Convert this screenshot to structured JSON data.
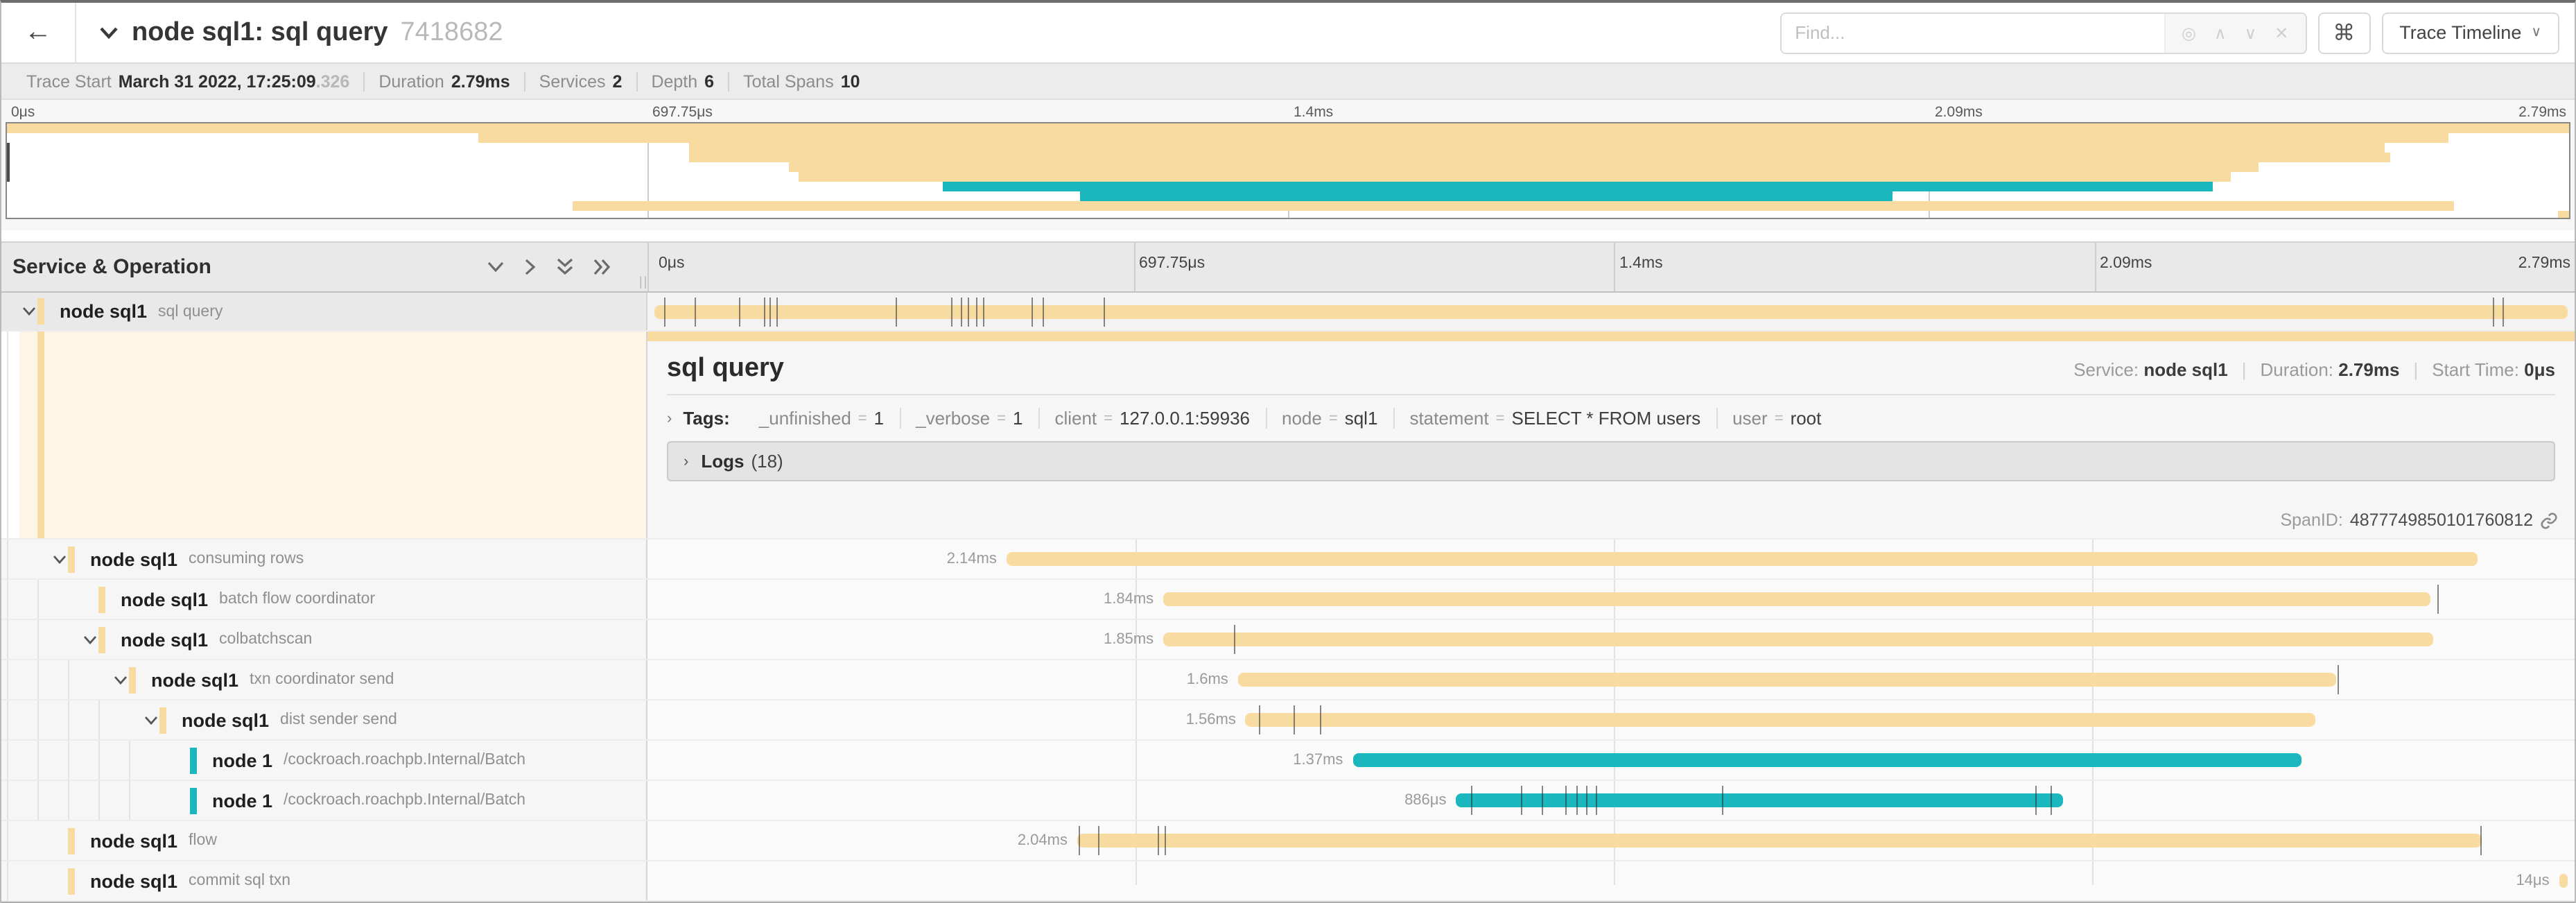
{
  "colors": {
    "tan": "#F8DBA0",
    "teal": "#1AB8BE"
  },
  "header": {
    "back": "←",
    "title": "node sql1: sql query",
    "trace_id": "7418682",
    "find_placeholder": "Find...",
    "find_icons": {
      "target": "◎",
      "prev": "∧",
      "next": "∨",
      "clear": "✕"
    },
    "shortcut_button": "⌘",
    "view_button": "Trace Timeline",
    "view_caret": "∨"
  },
  "trace_info": [
    {
      "label": "Trace Start",
      "value": "March 31 2022, 17:25:09",
      "suffix": ".326"
    },
    {
      "label": "Duration",
      "value": "2.79ms",
      "suffix": ""
    },
    {
      "label": "Services",
      "value": "2",
      "suffix": ""
    },
    {
      "label": "Depth",
      "value": "6",
      "suffix": ""
    },
    {
      "label": "Total Spans",
      "value": "10",
      "suffix": ""
    }
  ],
  "ruler": {
    "ticks": [
      {
        "label": "0μs",
        "pos": 0
      },
      {
        "label": "697.75μs",
        "pos": 0.25
      },
      {
        "label": "1.4ms",
        "pos": 0.5
      },
      {
        "label": "2.09ms",
        "pos": 0.75
      },
      {
        "label": "2.79ms",
        "pos": 1
      }
    ],
    "gridlines": [
      0.25,
      0.5,
      0.75
    ]
  },
  "section": {
    "left_title": "Service & Operation"
  },
  "spans": [
    {
      "service": "node sql1",
      "operation": "sql query",
      "level": 0,
      "chevron": true,
      "selected": true,
      "color": "tan",
      "start": 0,
      "end": 1,
      "duration_label": "",
      "ticks": [
        0.005,
        0.021,
        0.044,
        0.057,
        0.06,
        0.064,
        0.126,
        0.155,
        0.16,
        0.164,
        0.168,
        0.172,
        0.197,
        0.203,
        0.235,
        0.961,
        0.966
      ]
    },
    {
      "service": "node sql1",
      "operation": "consuming rows",
      "level": 1,
      "chevron": true,
      "selected": false,
      "color": "tan",
      "start": 0.184,
      "end": 0.953,
      "duration_label": "2.14ms",
      "ticks": []
    },
    {
      "service": "node sql1",
      "operation": "batch flow coordinator",
      "level": 2,
      "chevron": false,
      "selected": false,
      "color": "tan",
      "start": 0.266,
      "end": 0.928,
      "duration_label": "1.84ms",
      "ticks": [
        0.932
      ]
    },
    {
      "service": "node sql1",
      "operation": "colbatchscan",
      "level": 2,
      "chevron": true,
      "selected": false,
      "color": "tan",
      "start": 0.266,
      "end": 0.93,
      "duration_label": "1.85ms",
      "ticks": [
        0.303
      ]
    },
    {
      "service": "node sql1",
      "operation": "txn coordinator send",
      "level": 3,
      "chevron": true,
      "selected": false,
      "color": "tan",
      "start": 0.305,
      "end": 0.879,
      "duration_label": "1.6ms",
      "ticks": [
        0.88
      ]
    },
    {
      "service": "node sql1",
      "operation": "dist sender send",
      "level": 4,
      "chevron": true,
      "selected": false,
      "color": "tan",
      "start": 0.309,
      "end": 0.868,
      "duration_label": "1.56ms",
      "ticks": [
        0.316,
        0.334,
        0.348
      ]
    },
    {
      "service": "node 1",
      "operation": "/cockroach.roachpb.Internal/Batch",
      "level": 5,
      "chevron": false,
      "selected": false,
      "color": "teal",
      "start": 0.365,
      "end": 0.861,
      "duration_label": "1.37ms",
      "ticks": []
    },
    {
      "service": "node 1",
      "operation": "/cockroach.roachpb.Internal/Batch",
      "level": 5,
      "chevron": false,
      "selected": false,
      "color": "teal",
      "start": 0.419,
      "end": 0.736,
      "duration_label": "886μs",
      "ticks": [
        0.427,
        0.453,
        0.464,
        0.476,
        0.482,
        0.487,
        0.492,
        0.558,
        0.722,
        0.73
      ]
    },
    {
      "service": "node sql1",
      "operation": "flow",
      "level": 1,
      "chevron": false,
      "selected": false,
      "color": "tan",
      "start": 0.221,
      "end": 0.955,
      "duration_label": "2.04ms",
      "ticks": [
        0.222,
        0.232,
        0.263,
        0.267,
        0.954
      ]
    },
    {
      "service": "node sql1",
      "operation": "commit sql txn",
      "level": 1,
      "chevron": false,
      "selected": false,
      "color": "tan",
      "start": 0.9955,
      "end": 1.0,
      "duration_label": "14μs",
      "ticks": []
    }
  ],
  "detail": {
    "title": "sql query",
    "service_label": "Service:",
    "service": "node sql1",
    "duration_label": "Duration:",
    "duration": "2.79ms",
    "start_label": "Start Time:",
    "start": "0μs",
    "tags_label": "Tags:",
    "tags": [
      {
        "key": "_unfinished",
        "value": "1"
      },
      {
        "key": "_verbose",
        "value": "1"
      },
      {
        "key": "client",
        "value": "127.0.0.1:59936"
      },
      {
        "key": "node",
        "value": "sql1"
      },
      {
        "key": "statement",
        "value": "SELECT * FROM users"
      },
      {
        "key": "user",
        "value": "root"
      }
    ],
    "logs_label": "Logs",
    "logs_count": "(18)",
    "spanid_label": "SpanID:",
    "spanid": "4877749850101760812"
  }
}
